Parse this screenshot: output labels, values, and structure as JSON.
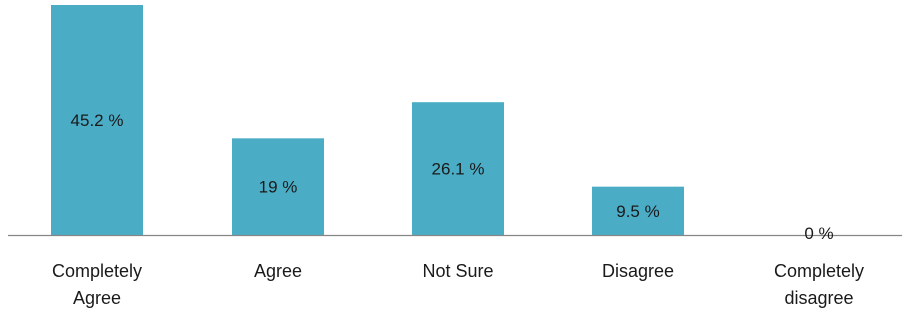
{
  "chart_data": {
    "type": "bar",
    "categories": [
      [
        "Completely",
        "Agree"
      ],
      [
        "Agree"
      ],
      [
        "Not Sure"
      ],
      [
        "Disagree"
      ],
      [
        "Completely",
        "disagree"
      ]
    ],
    "values": [
      45.2,
      19,
      26.1,
      9.5,
      0
    ],
    "data_labels": [
      "45.2 %",
      "19 %",
      "26.1 %",
      "9.5 %",
      "0 %"
    ],
    "title": "",
    "xlabel": "",
    "ylabel": "",
    "ylim": [
      0,
      45.2
    ],
    "grid": false,
    "legend": "none",
    "bar_color": "#4bacc6",
    "axis_color": "#868686",
    "text_color": "#1a1a1a"
  }
}
